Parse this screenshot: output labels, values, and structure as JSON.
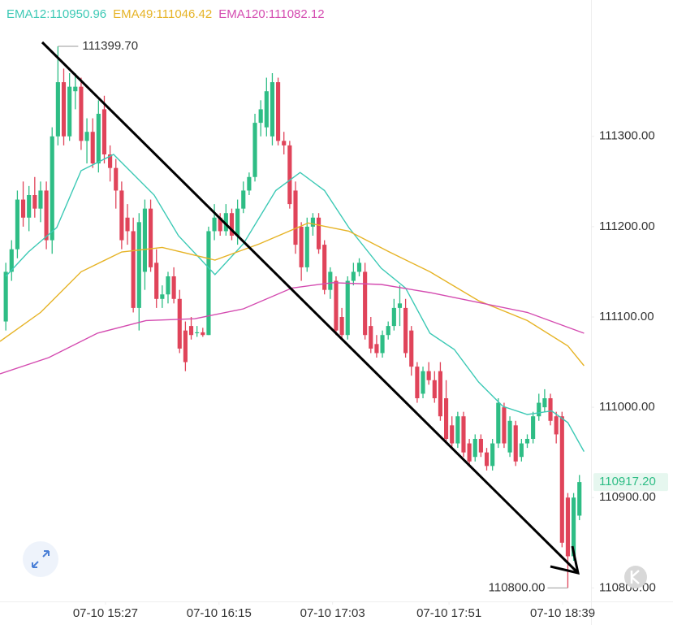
{
  "chart_data": {
    "type": "candlestick",
    "up_color": "#2ebd85",
    "down_color": "#e0445a",
    "xlim": [
      -1,
      101
    ],
    "ylim": [
      110785,
      111451
    ],
    "xticks": [
      {
        "value": 17.2,
        "label": "07-10 15:27"
      },
      {
        "value": 36.8,
        "label": "07-10 16:15"
      },
      {
        "value": 56.4,
        "label": "07-10 17:03"
      },
      {
        "value": 76.5,
        "label": "07-10 17:51"
      },
      {
        "value": 96.1,
        "label": "07-10 18:39"
      }
    ],
    "yticks": [
      {
        "value": 110800,
        "label": "110800.00"
      },
      {
        "value": 110900,
        "label": "110900.00"
      },
      {
        "value": 111000,
        "label": "111000.00"
      },
      {
        "value": 111100,
        "label": "111100.00"
      },
      {
        "value": 111200,
        "label": "111200.00"
      },
      {
        "value": 111300,
        "label": "111300.00"
      }
    ],
    "candles": [
      [
        111095,
        111160,
        111085,
        111150
      ],
      [
        111150,
        111185,
        111140,
        111175
      ],
      [
        111175,
        111240,
        111165,
        111230
      ],
      [
        111230,
        111250,
        111200,
        111210
      ],
      [
        111210,
        111245,
        111195,
        111235
      ],
      [
        111235,
        111255,
        111210,
        111220
      ],
      [
        111220,
        111250,
        111205,
        111240
      ],
      [
        111240,
        111250,
        111175,
        111185
      ],
      [
        111185,
        111310,
        111170,
        111300
      ],
      [
        111300,
        111399.7,
        111290,
        111360
      ],
      [
        111360,
        111375,
        111290,
        111300
      ],
      [
        111300,
        111370,
        111295,
        111355
      ],
      [
        111350,
        111370,
        111330,
        111355
      ],
      [
        111355,
        111365,
        111285,
        111295
      ],
      [
        111295,
        111320,
        111270,
        111305
      ],
      [
        111305,
        111320,
        111265,
        111270
      ],
      [
        111270,
        111340,
        111260,
        111325
      ],
      [
        111330,
        111345,
        111270,
        111280
      ],
      [
        111280,
        111290,
        111250,
        111265
      ],
      [
        111265,
        111275,
        111220,
        111240
      ],
      [
        111240,
        111250,
        111175,
        111185
      ],
      [
        111210,
        111225,
        111180,
        111195
      ],
      [
        111195,
        111210,
        111105,
        111110
      ],
      [
        111110,
        111215,
        111085,
        111205
      ],
      [
        111150,
        111230,
        111130,
        111220
      ],
      [
        111220,
        111230,
        111150,
        111155
      ],
      [
        111160,
        111175,
        111110,
        111120
      ],
      [
        111120,
        111135,
        111110,
        111125
      ],
      [
        111125,
        111150,
        111115,
        111145
      ],
      [
        111145,
        111155,
        111115,
        111120
      ],
      [
        111120,
        111130,
        111060,
        111065
      ],
      [
        111085,
        111095,
        111040,
        111050
      ],
      [
        111090,
        111100,
        111075,
        111080
      ],
      [
        111082,
        111090,
        111078,
        111083
      ],
      [
        111083,
        111088,
        111078,
        111080
      ],
      [
        111080,
        111200,
        111080,
        111195
      ],
      [
        111195,
        111225,
        111185,
        111210
      ],
      [
        111210,
        111215,
        111190,
        111195
      ],
      [
        111195,
        111225,
        111190,
        111215
      ],
      [
        111215,
        111220,
        111185,
        111190
      ],
      [
        111190,
        111230,
        111180,
        111220
      ],
      [
        111220,
        111250,
        111215,
        111240
      ],
      [
        111240,
        111260,
        111235,
        111255
      ],
      [
        111255,
        111325,
        111250,
        111315
      ],
      [
        111315,
        111340,
        111300,
        111330
      ],
      [
        111310,
        111365,
        111300,
        111350
      ],
      [
        111300,
        111370,
        111290,
        111360
      ],
      [
        111360,
        111365,
        111290,
        111295
      ],
      [
        111295,
        111305,
        111280,
        111290
      ],
      [
        111290,
        111295,
        111220,
        111225
      ],
      [
        111240,
        111250,
        111170,
        111180
      ],
      [
        111200,
        111205,
        111140,
        111155
      ],
      [
        111155,
        111210,
        111150,
        111200
      ],
      [
        111200,
        111215,
        111190,
        111210
      ],
      [
        111210,
        111215,
        111170,
        111175
      ],
      [
        111180,
        111185,
        111125,
        111130
      ],
      [
        111130,
        111155,
        111120,
        111150
      ],
      [
        111140,
        111145,
        111080,
        111085
      ],
      [
        111100,
        111110,
        111075,
        111080
      ],
      [
        111080,
        111145,
        111075,
        111140
      ],
      [
        111140,
        111160,
        111135,
        111150
      ],
      [
        111150,
        111165,
        111145,
        111160
      ],
      [
        111150,
        111160,
        111075,
        111080
      ],
      [
        111090,
        111100,
        111060,
        111065
      ],
      [
        111070,
        111080,
        111055,
        111060
      ],
      [
        111060,
        111085,
        111055,
        111080
      ],
      [
        111080,
        111095,
        111075,
        111090
      ],
      [
        111090,
        111120,
        111085,
        111110
      ],
      [
        111110,
        111135,
        111090,
        111115
      ],
      [
        111110,
        111120,
        111055,
        111060
      ],
      [
        111085,
        111090,
        111035,
        111045
      ],
      [
        111045,
        111050,
        111005,
        111010
      ],
      [
        111015,
        111045,
        111010,
        111040
      ],
      [
        111040,
        111050,
        111025,
        111030
      ],
      [
        111030,
        111040,
        111005,
        111010
      ],
      [
        111040,
        111050,
        110985,
        110990
      ],
      [
        111010,
        111030,
        110960,
        110965
      ],
      [
        110980,
        110990,
        110955,
        110960
      ],
      [
        110960,
        110995,
        110955,
        110990
      ],
      [
        110990,
        110995,
        110945,
        110950
      ],
      [
        110960,
        110965,
        110935,
        110940
      ],
      [
        110945,
        110970,
        110940,
        110965
      ],
      [
        110965,
        110970,
        110945,
        110950
      ],
      [
        110950,
        110955,
        110930,
        110935
      ],
      [
        110935,
        110965,
        110930,
        110960
      ],
      [
        110960,
        111010,
        110955,
        111005
      ],
      [
        111000,
        111005,
        110955,
        110960
      ],
      [
        110950,
        110990,
        110945,
        110985
      ],
      [
        110980,
        110985,
        110935,
        110940
      ],
      [
        110945,
        110965,
        110940,
        110960
      ],
      [
        110960,
        110970,
        110955,
        110965
      ],
      [
        110965,
        110995,
        110960,
        110990
      ],
      [
        110990,
        111015,
        110985,
        111005
      ],
      [
        111000,
        111020,
        110995,
        111010
      ],
      [
        111010,
        111015,
        110980,
        110985
      ],
      [
        110990,
        110995,
        110960,
        110970
      ],
      [
        110990,
        110995,
        110845,
        110850
      ],
      [
        110900,
        110905,
        110800,
        110835
      ],
      [
        110835,
        110905,
        110830,
        110900
      ],
      [
        110880,
        110925,
        110875,
        110917.2
      ]
    ],
    "series": [
      {
        "name": "EMA12:110950.96",
        "color": "#3cc9b5",
        "x": [
          0,
          3.9,
          8.8,
          13,
          18.6,
          21.4,
          25.6,
          29.8,
          36.1,
          41,
          46.6,
          50.8,
          55,
          59.2,
          64.8,
          69,
          73.2,
          77.4,
          81.6,
          85.8,
          90,
          94.2,
          97,
          99.8
        ],
        "values": [
          111145,
          111172,
          111199,
          111262,
          111280,
          111262,
          111235,
          111190,
          111147,
          111181,
          111240,
          111260,
          111240,
          111199,
          111154,
          111132,
          111082,
          111064,
          111028,
          111001,
          110992,
          110996,
          110983,
          110951
        ]
      },
      {
        "name": "EMA49:111046.42",
        "color": "#e6b325",
        "x": [
          -1,
          6,
          13,
          20,
          27,
          36.1,
          43.8,
          52.2,
          59.2,
          66.2,
          73.2,
          81.6,
          90,
          97,
          99.8
        ],
        "values": [
          111073,
          111105,
          111150,
          111172,
          111177,
          111163,
          111181,
          111204,
          111195,
          111172,
          111150,
          111118,
          111096,
          111068,
          111046
        ]
      },
      {
        "name": "EMA120:111082.12",
        "color": "#d44bb0",
        "x": [
          -1,
          7.4,
          15.8,
          24.2,
          32.6,
          41,
          49.4,
          56.4,
          64.8,
          73.2,
          81.6,
          90,
          99.8
        ],
        "values": [
          111037,
          111055,
          111082,
          111096,
          111098,
          111109,
          111132,
          111138,
          111136,
          111127,
          111116,
          111105,
          111082
        ]
      }
    ],
    "high": {
      "value": 111399.7,
      "label": "111399.70"
    },
    "low": {
      "value": 110800,
      "label": "110800.00"
    },
    "last_price": {
      "value": 110917.2,
      "label": "110917.20"
    }
  }
}
